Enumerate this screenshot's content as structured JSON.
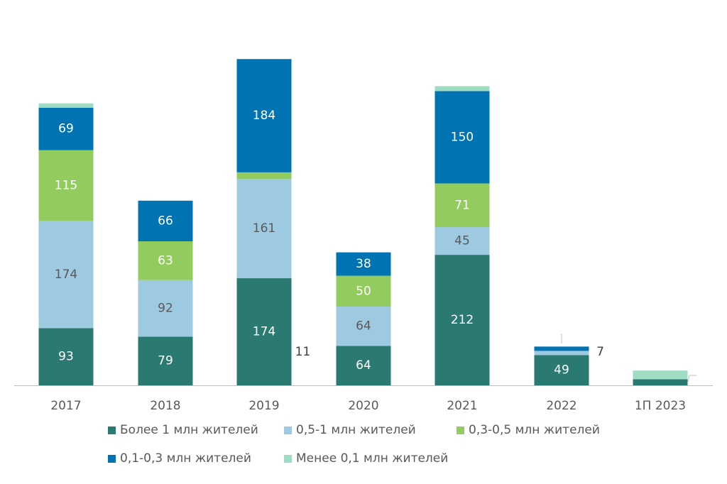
{
  "chart_data": {
    "type": "bar",
    "stacked": true,
    "categories": [
      "2017",
      "2018",
      "2019",
      "2020",
      "2021",
      "2022",
      "1П 2023"
    ],
    "series": [
      {
        "name": "Более 1 млн жителей",
        "color": "#2a7a72",
        "label_color": "#ffffff",
        "values": [
          93,
          79,
          174,
          64,
          212,
          49,
          10
        ],
        "labels": [
          "93",
          "79",
          "174",
          "64",
          "212",
          "49",
          ""
        ]
      },
      {
        "name": "0,5-1 млн жителей",
        "color": "#9ecae1",
        "label_color": "#595959",
        "values": [
          174,
          92,
          161,
          64,
          45,
          7,
          0
        ],
        "labels": [
          "174",
          "92",
          "161",
          "64",
          "45",
          "7",
          ""
        ]
      },
      {
        "name": "0,3-0,5 млн жителей",
        "color": "#92cc5e",
        "label_color": "#ffffff",
        "values": [
          115,
          63,
          11,
          50,
          71,
          0,
          0
        ],
        "labels": [
          "115",
          "63",
          "11",
          "50",
          "71",
          "",
          ""
        ]
      },
      {
        "name": "0,1-0,3 млн жителей",
        "color": "#0074b3",
        "label_color": "#ffffff",
        "values": [
          69,
          66,
          184,
          38,
          150,
          7,
          0
        ],
        "labels": [
          "69",
          "66",
          "184",
          "38",
          "150",
          "",
          ""
        ]
      },
      {
        "name": "Менее 0,1 млн жителей",
        "color": "#9fdcc2",
        "label_color": "#595959",
        "values": [
          7,
          0,
          0,
          0,
          8,
          0,
          14
        ],
        "labels": [
          "",
          "",
          "",
          "",
          "",
          "",
          ""
        ]
      }
    ],
    "ylim": [
      0,
      530
    ],
    "grid": false,
    "legend_position": "bottom"
  }
}
